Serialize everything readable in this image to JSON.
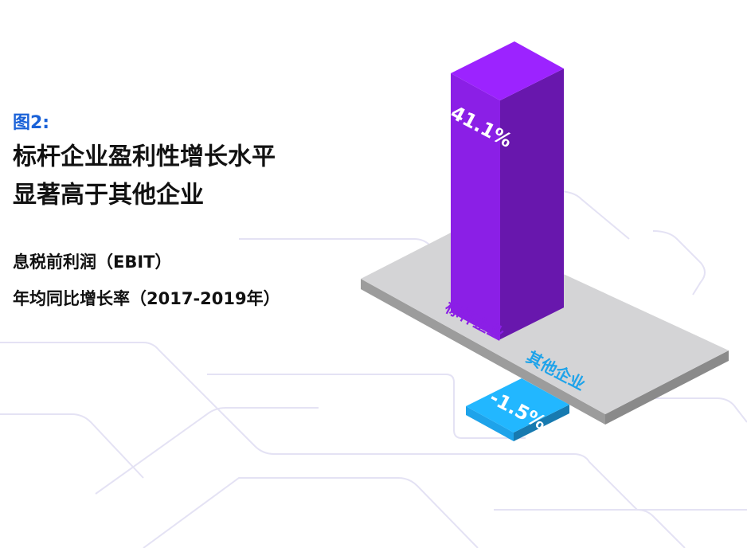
{
  "chart_data": {
    "type": "bar",
    "label": "图2:",
    "title_lines": [
      "标杆企业盈利性增长水平",
      "显著高于其他企业"
    ],
    "subtitle_lines": [
      "息税前利润（EBIT）",
      "年均同比增长率（2017-2019年）"
    ],
    "categories": [
      "标杆企业",
      "其他企业"
    ],
    "values": [
      41.1,
      -1.5
    ],
    "value_labels": [
      "41.1%",
      "-1.5%"
    ],
    "colors": [
      "#8b1fe6",
      "#1ea3ea"
    ]
  }
}
